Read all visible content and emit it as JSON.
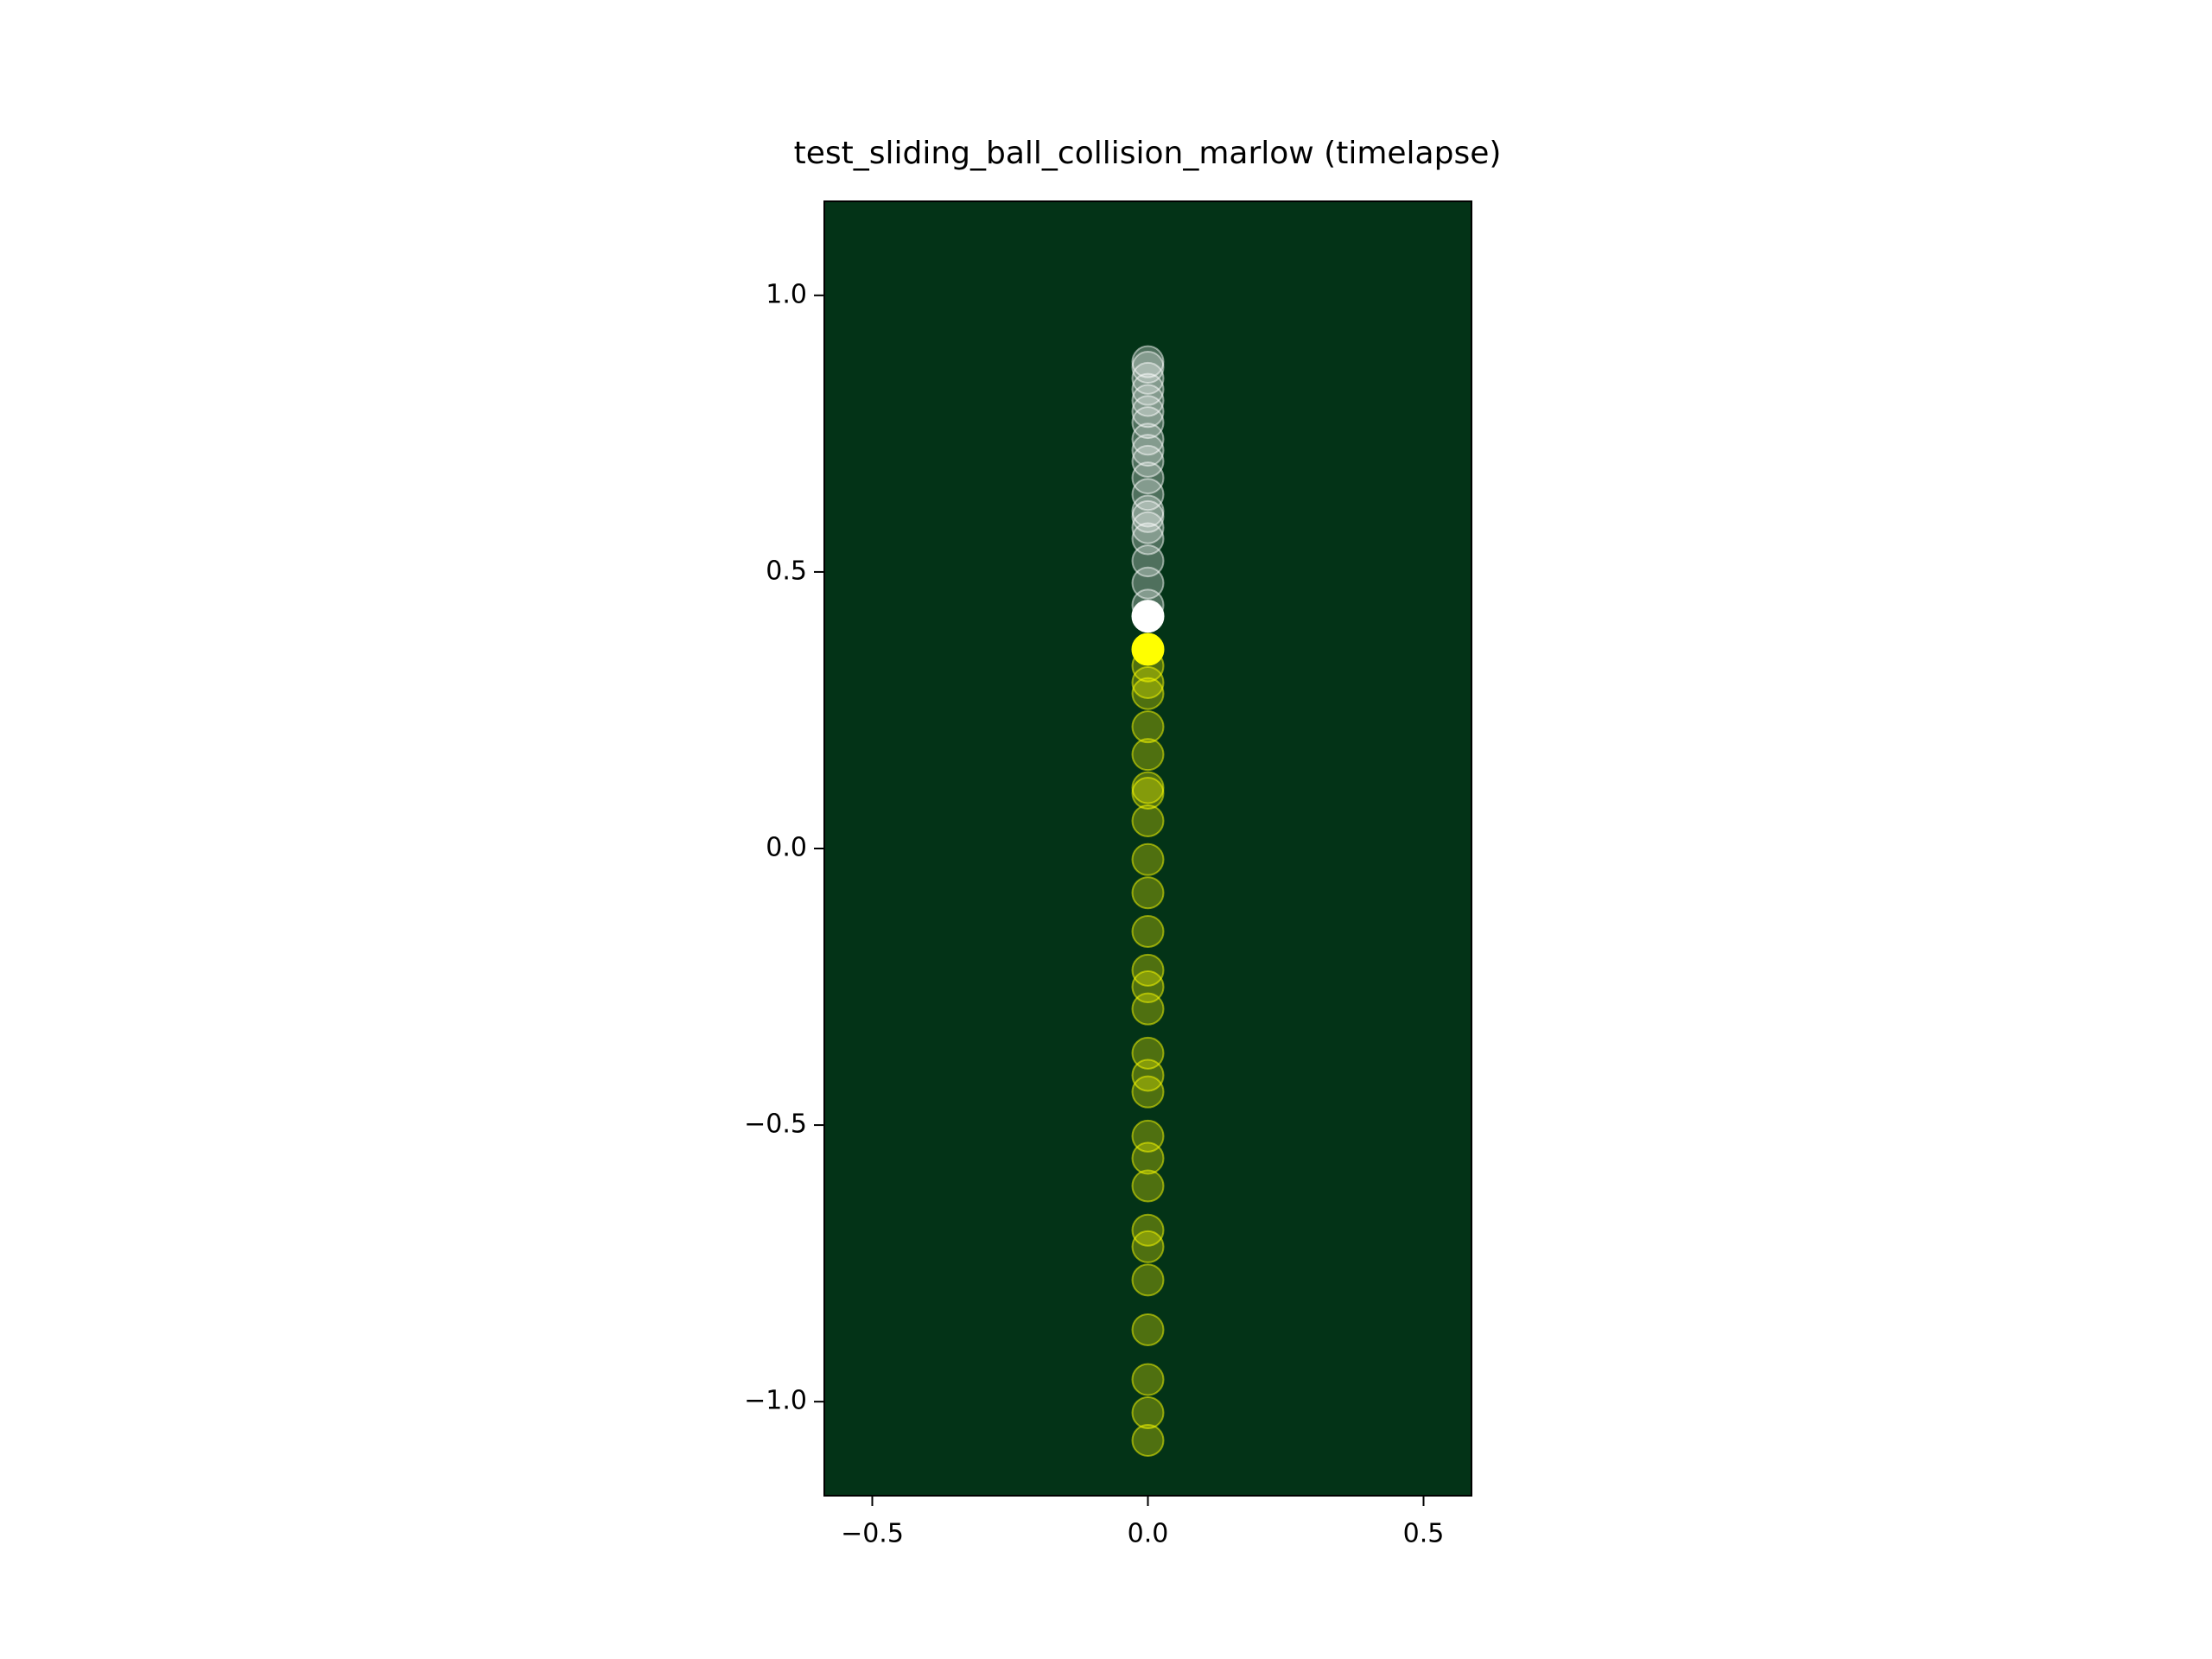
{
  "chart_data": {
    "type": "scatter",
    "title": "test_sliding_ball_collision_marlow (timelapse)",
    "facecolor": "#033317",
    "xlim": [
      -0.587,
      0.587
    ],
    "ylim": [
      -1.17,
      1.17
    ],
    "xticks": [
      {
        "value": -0.5,
        "label": "−0.5"
      },
      {
        "value": 0,
        "label": "0.0"
      },
      {
        "value": 0.5,
        "label": "0.5"
      }
    ],
    "yticks": [
      {
        "value": -1,
        "label": "−1.0"
      },
      {
        "value": -0.5,
        "label": "−0.5"
      },
      {
        "value": 0,
        "label": "0.0"
      },
      {
        "value": 0.5,
        "label": "0.5"
      },
      {
        "value": 1,
        "label": "1.0"
      }
    ],
    "series": [
      {
        "color": "#ffffff",
        "x": [
          0,
          0,
          0,
          0,
          0,
          0,
          0,
          0,
          0,
          0,
          0,
          0,
          0,
          0,
          0,
          0,
          0,
          0,
          0,
          0
        ],
        "y": [
          0.88,
          0.87,
          0.85,
          0.83,
          0.81,
          0.79,
          0.77,
          0.74,
          0.72,
          0.7,
          0.67,
          0.64,
          0.61,
          0.6,
          0.58,
          0.56,
          0.52,
          0.48,
          0.44,
          0.42
        ]
      },
      {
        "color": "#ffff00",
        "x": [
          0,
          0,
          0,
          0,
          0,
          0,
          0,
          0,
          0,
          0,
          0,
          0,
          0,
          0,
          0,
          0,
          0,
          0,
          0,
          0,
          0,
          0,
          0,
          0,
          0,
          0,
          0,
          0
        ],
        "y": [
          -1.07,
          -1.02,
          -0.96,
          -0.87,
          -0.78,
          -0.72,
          -0.69,
          -0.61,
          -0.56,
          -0.52,
          -0.44,
          -0.41,
          -0.37,
          -0.29,
          -0.25,
          -0.22,
          -0.15,
          -0.08,
          -0.02,
          0.05,
          0.1,
          0.11,
          0.17,
          0.22,
          0.28,
          0.3,
          0.33,
          0.36
        ]
      }
    ]
  }
}
